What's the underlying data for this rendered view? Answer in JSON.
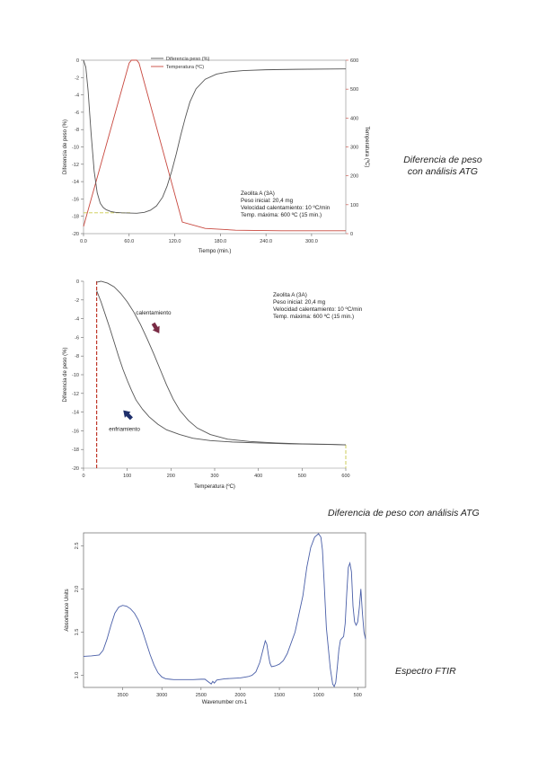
{
  "captions": {
    "c1_line1": "Diferencia de peso",
    "c1_line2": "con análisis ATG",
    "c2": "Diferencia de peso con análisis ATG",
    "c3": "Espectro FTIR"
  },
  "chart_data": [
    {
      "type": "line",
      "xlabel": "Tiempo (min.)",
      "ylabel": "Diferencia de peso (%)",
      "y2label": "Temperatura (ºC)",
      "xlim": [
        0,
        345
      ],
      "ylim": [
        -20,
        0
      ],
      "y2lim": [
        0,
        600
      ],
      "xticks": [
        0,
        60,
        120,
        180,
        240,
        300
      ],
      "xtick_labels": [
        "0.0",
        "60.0",
        "120.0",
        "180.0",
        "240.0",
        "300.0"
      ],
      "yticks": [
        0,
        -2,
        -4,
        -6,
        -8,
        -10,
        -12,
        -14,
        -16,
        -18,
        -20
      ],
      "y2ticks": [
        0,
        100,
        200,
        300,
        400,
        500,
        600
      ],
      "legend_position": "top-center",
      "series": [
        {
          "name": "Diferencia peso (%)",
          "axis": "left",
          "color": "#555555",
          "x": [
            0,
            3,
            6,
            10,
            14,
            18,
            22,
            26,
            30,
            36,
            42,
            50,
            60,
            70,
            80,
            88,
            96,
            104,
            110,
            116,
            122,
            128,
            134,
            140,
            148,
            160,
            175,
            190,
            210,
            240,
            280,
            345
          ],
          "y": [
            0,
            -0.8,
            -3.5,
            -8.5,
            -12.8,
            -15.3,
            -16.5,
            -17.0,
            -17.25,
            -17.45,
            -17.55,
            -17.6,
            -17.62,
            -17.65,
            -17.55,
            -17.3,
            -16.8,
            -15.8,
            -14.5,
            -12.8,
            -10.8,
            -8.6,
            -6.6,
            -4.8,
            -3.3,
            -2.2,
            -1.6,
            -1.35,
            -1.2,
            -1.1,
            -1.05,
            -1.0
          ]
        },
        {
          "name": "Temperatura (ºC)",
          "axis": "right",
          "color": "#c8483f",
          "x": [
            0,
            60,
            63,
            70,
            73,
            130,
            160,
            200,
            260,
            345
          ],
          "y": [
            25,
            590,
            600,
            600,
            590,
            40,
            18,
            12,
            10,
            10
          ]
        }
      ],
      "reference_line": {
        "color": "#c9c94a",
        "x": [
          0,
          62
        ],
        "y": [
          -17.6,
          -17.6
        ]
      },
      "annotation": [
        "Zeolita A (3A)",
        "Peso inicial: 20,4 mg",
        "Velocidad calentamiento: 10 ºC/min",
        "Temp. máxima: 600 ºC (15 min.)"
      ]
    },
    {
      "type": "line",
      "xlabel": "Temperatura (ºC)",
      "ylabel": "Diferencia de peso (%)",
      "xlim": [
        0,
        600
      ],
      "ylim": [
        -20,
        0
      ],
      "xticks": [
        0,
        100,
        200,
        300,
        400,
        500,
        600
      ],
      "yticks": [
        0,
        -2,
        -4,
        -6,
        -8,
        -10,
        -12,
        -14,
        -16,
        -18,
        -20
      ],
      "series": [
        {
          "name": "calentamiento",
          "color": "#555555",
          "x": [
            30,
            40,
            55,
            70,
            85,
            100,
            115,
            130,
            145,
            160,
            175,
            190,
            205,
            220,
            240,
            260,
            290,
            330,
            380,
            440,
            500,
            560,
            600
          ],
          "y": [
            -0.1,
            0,
            -0.2,
            -0.6,
            -1.3,
            -2.2,
            -3.3,
            -4.6,
            -6.1,
            -7.7,
            -9.4,
            -11.1,
            -12.6,
            -13.8,
            -14.9,
            -15.7,
            -16.4,
            -16.9,
            -17.15,
            -17.3,
            -17.4,
            -17.45,
            -17.5
          ]
        },
        {
          "name": "enfriamiento",
          "color": "#555555",
          "x": [
            30,
            40,
            50,
            60,
            70,
            80,
            90,
            100,
            110,
            120,
            135,
            150,
            170,
            190,
            220,
            250,
            290,
            340,
            400,
            470,
            540,
            600
          ],
          "y": [
            -1.0,
            -2.2,
            -3.6,
            -5.0,
            -6.5,
            -8.0,
            -9.4,
            -10.6,
            -11.7,
            -12.7,
            -13.7,
            -14.5,
            -15.3,
            -15.9,
            -16.4,
            -16.8,
            -17.05,
            -17.2,
            -17.3,
            -17.4,
            -17.45,
            -17.5
          ]
        }
      ],
      "reference_lines": [
        {
          "color": "#c0392b",
          "x": [
            30,
            30
          ],
          "y": [
            0,
            -20
          ]
        },
        {
          "color": "#c9c94a",
          "x": [
            600,
            600
          ],
          "y": [
            -17.5,
            -20
          ]
        }
      ],
      "arrows": [
        {
          "label": "calentamiento",
          "color": "#7a2b45",
          "at": [
            165,
            -5.0
          ]
        },
        {
          "label": "enfriamiento",
          "color": "#1e2f6b",
          "at": [
            95,
            -14.2
          ]
        }
      ],
      "annotation": [
        "Zeolita A (3A)",
        "Peso inicial: 20,4 mg",
        "Velocidad calentamiento: 10 ºC/min",
        "Temp. máxima: 600 ºC (15 min.)"
      ]
    },
    {
      "type": "line",
      "xlabel": "Wavenumber cm-1",
      "ylabel": "Absorbance Units",
      "xlim": [
        4000,
        400
      ],
      "ylim": [
        0.86,
        2.65
      ],
      "xticks": [
        3500,
        3000,
        2500,
        2000,
        1500,
        1000,
        500
      ],
      "yticks": [
        1.0,
        1.5,
        2.0,
        2.5
      ],
      "ytick_labels": [
        "1.0",
        "1.5",
        "2.0",
        "2.5"
      ],
      "series": [
        {
          "name": "",
          "color": "#4a5fa8",
          "x": [
            4000,
            3900,
            3800,
            3750,
            3700,
            3650,
            3600,
            3550,
            3500,
            3450,
            3400,
            3350,
            3300,
            3250,
            3200,
            3150,
            3100,
            3050,
            3000,
            2950,
            2900,
            2850,
            2800,
            2700,
            2600,
            2500,
            2450,
            2400,
            2370,
            2350,
            2330,
            2300,
            2200,
            2100,
            2000,
            1900,
            1850,
            1800,
            1750,
            1700,
            1680,
            1660,
            1640,
            1620,
            1600,
            1550,
            1500,
            1450,
            1400,
            1300,
            1200,
            1150,
            1100,
            1050,
            1000,
            970,
            950,
            930,
            900,
            850,
            820,
            800,
            780,
            760,
            740,
            720,
            700,
            680,
            660,
            640,
            620,
            600,
            580,
            560,
            540,
            520,
            500,
            480,
            460,
            440,
            420,
            400
          ],
          "y": [
            1.22,
            1.225,
            1.235,
            1.29,
            1.42,
            1.58,
            1.72,
            1.79,
            1.81,
            1.8,
            1.77,
            1.72,
            1.64,
            1.52,
            1.38,
            1.24,
            1.12,
            1.03,
            0.98,
            0.96,
            0.955,
            0.95,
            0.95,
            0.95,
            0.95,
            0.955,
            0.955,
            0.92,
            0.9,
            0.93,
            0.91,
            0.945,
            0.96,
            0.965,
            0.97,
            0.985,
            1.0,
            1.04,
            1.15,
            1.33,
            1.4,
            1.36,
            1.24,
            1.14,
            1.1,
            1.11,
            1.13,
            1.17,
            1.25,
            1.5,
            1.92,
            2.25,
            2.48,
            2.6,
            2.64,
            2.6,
            2.45,
            2.1,
            1.55,
            1.08,
            0.9,
            0.87,
            0.92,
            1.1,
            1.3,
            1.41,
            1.43,
            1.45,
            1.6,
            1.95,
            2.25,
            2.3,
            2.2,
            1.8,
            1.62,
            1.58,
            1.62,
            1.78,
            2.0,
            1.72,
            1.5,
            1.42
          ]
        }
      ]
    }
  ]
}
